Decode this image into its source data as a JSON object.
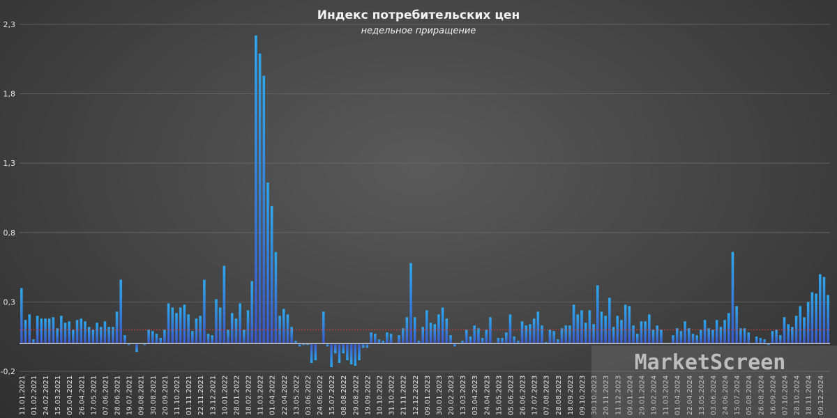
{
  "chart_data": {
    "type": "bar",
    "title": "Индекс потребительских цен",
    "subtitle": "недельное приращение",
    "xlabel": "",
    "ylabel": "",
    "ylim": [
      -0.2,
      2.3
    ],
    "y_ticks": [
      -0.2,
      0.3,
      0.8,
      1.3,
      1.8,
      2.3
    ],
    "y_tick_labels": [
      "-0,2",
      "0,3",
      "0,8",
      "1,3",
      "1,8",
      "2,3"
    ],
    "reference_line": {
      "value": 0.1,
      "color": "#e03a3a"
    },
    "grid": {
      "horizontal": true,
      "vertical": false
    },
    "bar_color_top": "#2ea8ee",
    "bar_color_bottom": "#3b57c8",
    "x_tick_every": 3,
    "x_tick_labels": [
      "11.01.2021",
      "01.02.2021",
      "24.02.2021",
      "15.03.2021",
      "05.04.2021",
      "26.04.2021",
      "17.05.2021",
      "07.06.2021",
      "28.06.2021",
      "19.07.2021",
      "09.08.2021",
      "30.08.2021",
      "20.09.2021",
      "11.10.2021",
      "01.11.2021",
      "22.11.2021",
      "13.12.2021",
      "10.01.2022",
      "28.01.2022",
      "18.02.2022",
      "11.03.2022",
      "01.04.2022",
      "22.04.2022",
      "13.05.2022",
      "03.06.2022",
      "24.06.2022",
      "15.07.2022",
      "08.08.2022",
      "29.08.2022",
      "19.09.2022",
      "10.10.2022",
      "31.10.2022",
      "21.11.2022",
      "12.12.2022",
      "09.01.2023",
      "30.01.2023",
      "20.02.2023",
      "13.03.2023",
      "03.04.2023",
      "24.04.2023",
      "15.05.2023",
      "05.06.2023",
      "26.06.2023",
      "17.07.2023",
      "07.08.2023",
      "28.08.2023",
      "18.09.2023",
      "09.10.2023",
      "30.10.2023",
      "20.11.2023",
      "11.12.2023",
      "09.01.2024",
      "29.01.2024",
      "19.02.2024",
      "11.03.2024",
      "01.04.2024",
      "22.04.2024",
      "13.05.2024",
      "03.06.2024",
      "24.06.2024",
      "15.07.2024",
      "05.08.2024",
      "26.08.2024",
      "16.09.2024",
      "07.10.2024",
      "28.10.2024",
      "18.11.2024",
      "09.12.2024"
    ],
    "values": [
      0.4,
      0.17,
      0.21,
      0.03,
      0.2,
      0.18,
      0.18,
      0.18,
      0.19,
      0.11,
      0.2,
      0.15,
      0.16,
      0.1,
      0.17,
      0.18,
      0.16,
      0.12,
      0.1,
      0.15,
      0.12,
      0.16,
      0.12,
      0.12,
      0.23,
      0.46,
      0.06,
      -0.01,
      0,
      -0.06,
      0,
      -0.01,
      0.1,
      0.09,
      0.07,
      0.04,
      0.1,
      0.29,
      0.26,
      0.22,
      0.26,
      0.28,
      0.21,
      0.09,
      0.18,
      0.2,
      0.46,
      0.07,
      0.06,
      0.32,
      0.26,
      0.56,
      0.1,
      0.22,
      0.18,
      0.29,
      0.1,
      0.24,
      0.45,
      2.22,
      2.09,
      1.93,
      1.16,
      0.99,
      0.66,
      0.2,
      0.25,
      0.21,
      0.12,
      0.02,
      -0.02,
      -0.01,
      -0.01,
      -0.14,
      -0.12,
      0,
      0.23,
      -0.02,
      -0.17,
      -0.07,
      -0.14,
      -0.07,
      -0.12,
      -0.15,
      -0.16,
      -0.12,
      -0.03,
      -0.03,
      0.08,
      0.07,
      0.03,
      0.02,
      0.08,
      0.07,
      0,
      0.06,
      0.11,
      0.19,
      0.58,
      0.19,
      0.02,
      0.12,
      0.24,
      0.15,
      0.14,
      0.21,
      0.26,
      0.18,
      0.06,
      -0.02,
      0,
      0.02,
      0.1,
      0.05,
      0.13,
      0.11,
      0.04,
      0.1,
      0.19,
      0,
      0.04,
      0.04,
      0.08,
      0.21,
      0.05,
      0.02,
      0.16,
      0.13,
      0.14,
      0.18,
      0.23,
      0.13,
      0.01,
      0.1,
      0.09,
      0.03,
      0.11,
      0.13,
      0.13,
      0.28,
      0.21,
      0.24,
      0.15,
      0.24,
      0.14,
      0.42,
      0.23,
      0.2,
      0.33,
      0.12,
      0.2,
      0.17,
      0.28,
      0.27,
      0.13,
      0.07,
      0.16,
      0.16,
      0.21,
      0.1,
      0.13,
      0.1,
      0,
      0,
      0.06,
      0.11,
      0.09,
      0.16,
      0.11,
      0.07,
      0.06,
      0.1,
      0.17,
      0.11,
      0.1,
      0.17,
      0.12,
      0.17,
      0.22,
      0.66,
      0.27,
      0.11,
      0.11,
      0.08,
      0,
      0.05,
      0.04,
      0.03,
      -0.01,
      0.09,
      0.1,
      0.06,
      0.19,
      0.14,
      0.12,
      0.2,
      0.27,
      0.19,
      0.3,
      0.37,
      0.36,
      0.5,
      0.48,
      0.35
    ]
  },
  "watermark": "MarketScreen"
}
